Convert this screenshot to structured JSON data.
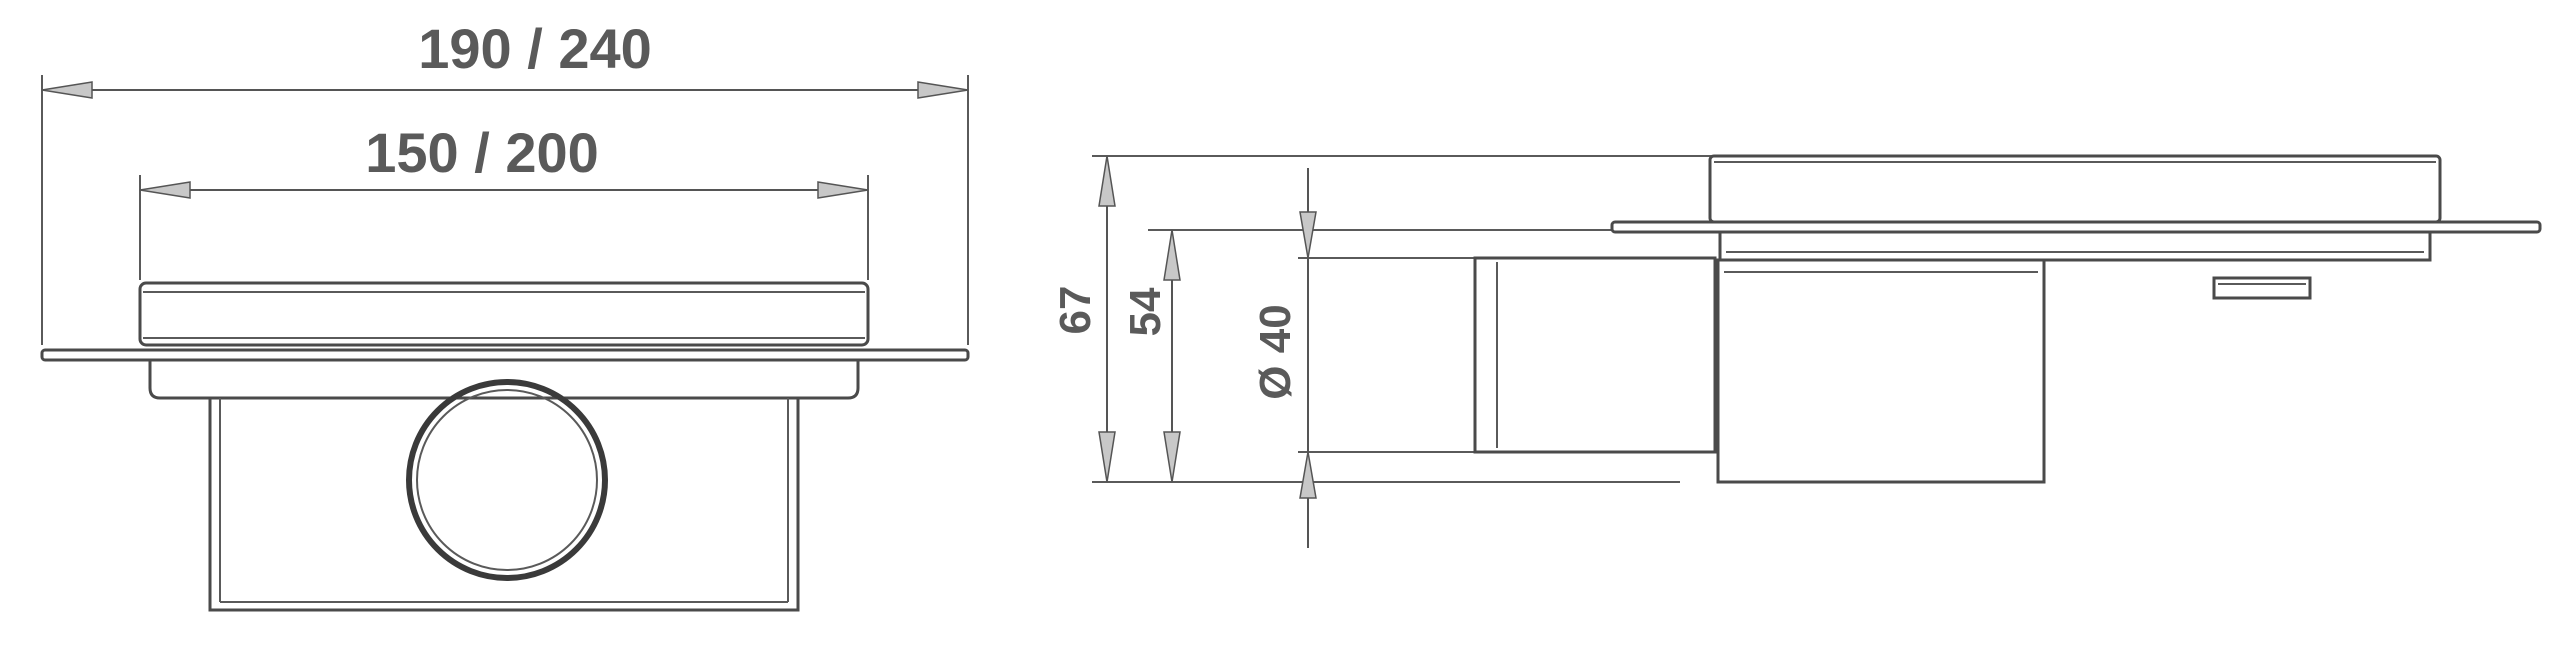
{
  "front_view": {
    "outer_width_label": "190 / 240",
    "inner_width_label": "150 / 200"
  },
  "side_view": {
    "total_height_label": "67",
    "outlet_height_label": "54",
    "pipe_diameter_label": "Ø 40"
  },
  "colors": {
    "line": "#4a4a4a",
    "text": "#5a5a5a",
    "arrow_fill": "#c8c8c8"
  }
}
